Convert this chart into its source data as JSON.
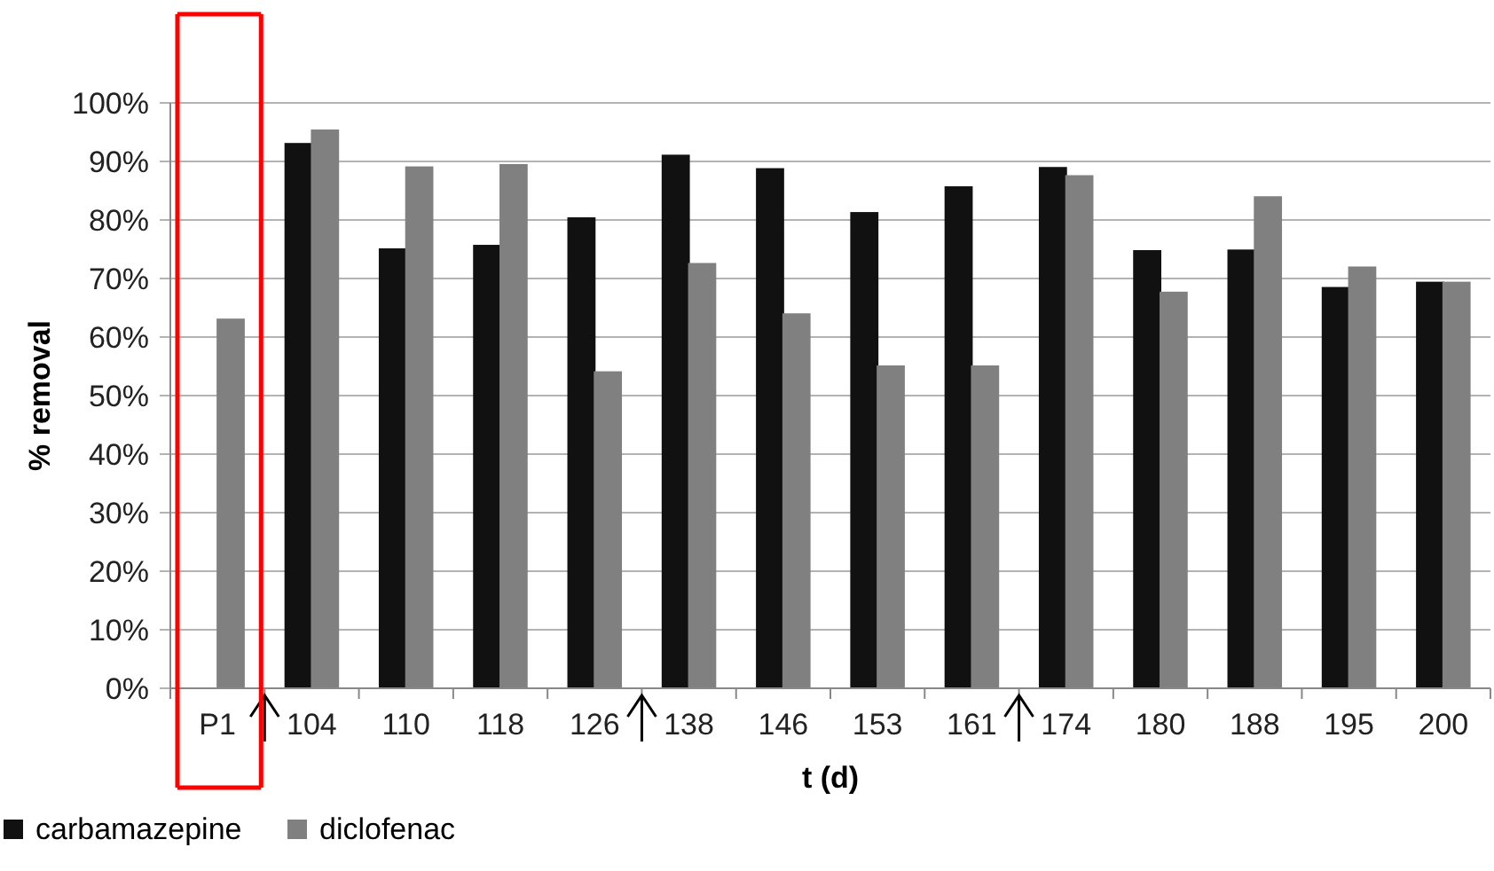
{
  "chart_data": {
    "type": "bar",
    "xlabel": "t (d)",
    "ylabel": "% removal",
    "categories": [
      "P1",
      "104",
      "110",
      "118",
      "126",
      "138",
      "146",
      "153",
      "161",
      "174",
      "180",
      "188",
      "195",
      "200"
    ],
    "series": [
      {
        "name": "carbamazepine",
        "color": "#111111",
        "values": [
          0,
          93,
          75,
          75.6,
          80.3,
          91,
          88.7,
          81.2,
          85.6,
          88.9,
          74.7,
          74.8,
          68.4,
          69.3
        ]
      },
      {
        "name": "diclofenac",
        "color": "#808080",
        "values": [
          63,
          95.3,
          89,
          89.4,
          54,
          72.5,
          63.9,
          55,
          55,
          87.5,
          67.6,
          83.9,
          71.9,
          69.3
        ]
      }
    ],
    "ylim": [
      0,
      100
    ],
    "yticks": [
      {
        "value": 0,
        "label": "0%"
      },
      {
        "value": 10,
        "label": "10%"
      },
      {
        "value": 20,
        "label": "20%"
      },
      {
        "value": 30,
        "label": "30%"
      },
      {
        "value": 40,
        "label": "40%"
      },
      {
        "value": 50,
        "label": "50%"
      },
      {
        "value": 60,
        "label": "60%"
      },
      {
        "value": 70,
        "label": "70%"
      },
      {
        "value": 80,
        "label": "80%"
      },
      {
        "value": 90,
        "label": "90%"
      },
      {
        "value": 100,
        "label": "100%"
      }
    ],
    "grid": "y",
    "legend": "bottom left"
  }
}
